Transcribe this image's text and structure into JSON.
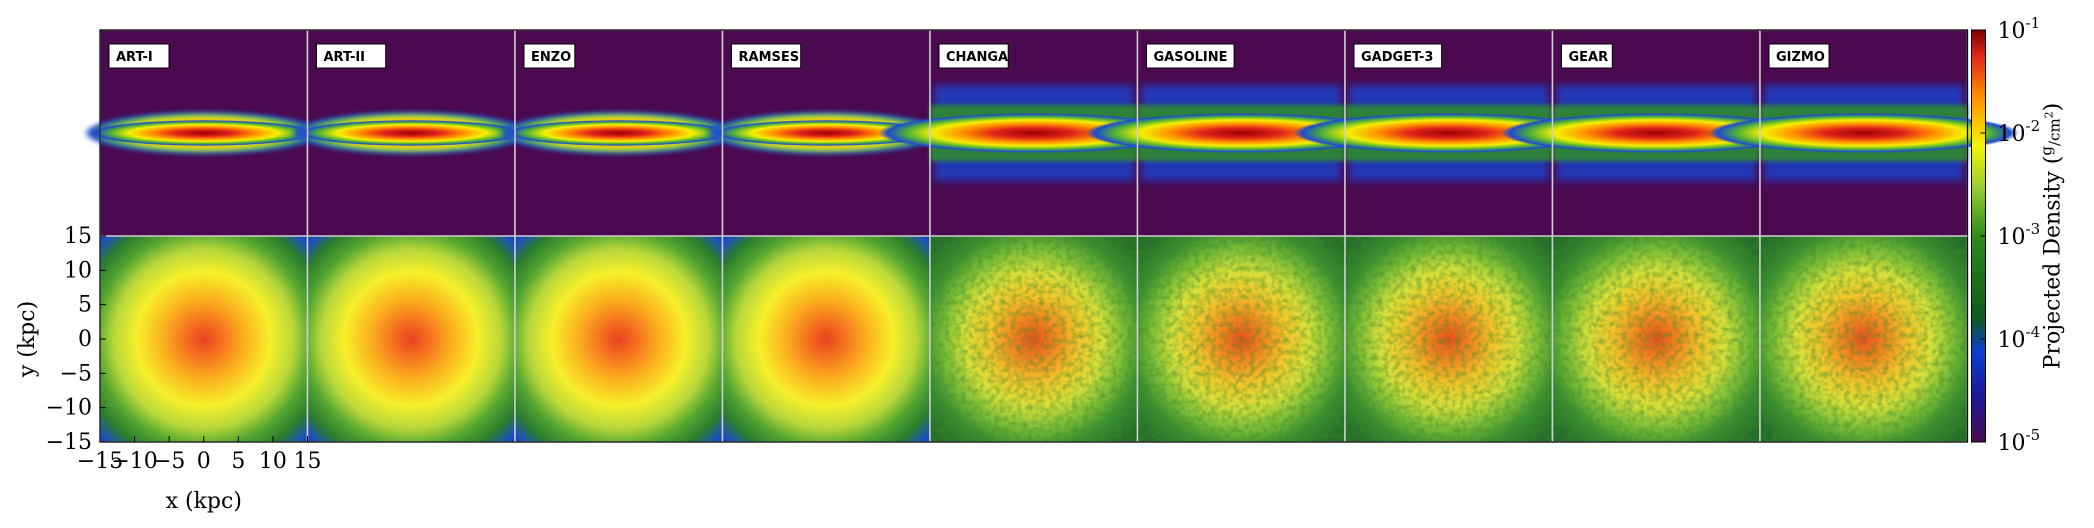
{
  "chart_data": {
    "type": "heatmap",
    "panels": [
      "ART-I",
      "ART-II",
      "ENZO",
      "RAMSES",
      "CHANGA",
      "GASOLINE",
      "GADGET-3",
      "GEAR",
      "GIZMO"
    ],
    "grid_codes": [
      "ART-I",
      "ART-II",
      "ENZO",
      "RAMSES"
    ],
    "particle_codes": [
      "CHANGA",
      "GASOLINE",
      "GADGET-3",
      "GEAR",
      "GIZMO"
    ],
    "rows": [
      "edge-on",
      "face-on"
    ],
    "xlabel": "x (kpc)",
    "ylabel": "y (kpc)",
    "xlim": [
      -15,
      15
    ],
    "ylim": [
      -15,
      15
    ],
    "x_ticks": [
      "−15",
      "−10",
      "−5",
      "0",
      "5",
      "10",
      "15"
    ],
    "y_ticks": [
      "15",
      "10",
      "5",
      "0",
      "−5",
      "−10",
      "−15"
    ],
    "colorbar": {
      "label": "Projected Density",
      "unit_num": "g",
      "unit_den": "cm",
      "unit_den_exp": "2",
      "scale": "log",
      "range": [
        1e-05,
        0.1
      ],
      "ticks": [
        {
          "base": "10",
          "exp": "-1"
        },
        {
          "base": "10",
          "exp": "-2"
        },
        {
          "base": "10",
          "exp": "-3"
        },
        {
          "base": "10",
          "exp": "-4"
        },
        {
          "base": "10",
          "exp": "-5"
        }
      ]
    }
  }
}
